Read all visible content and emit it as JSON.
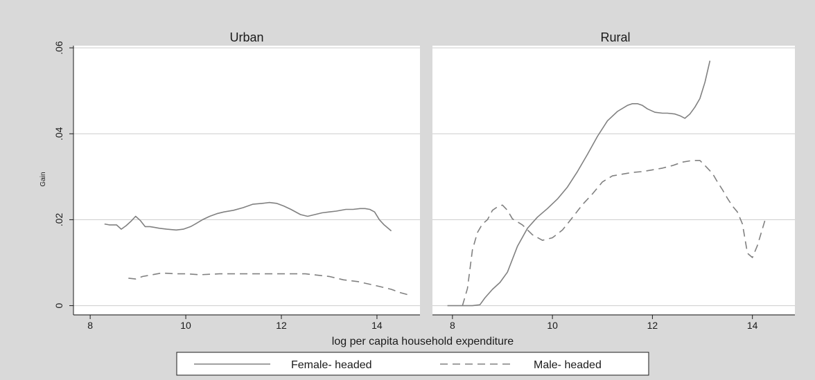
{
  "chart_data": {
    "type": "line",
    "ylabel": "Gain",
    "xlabel": "log per capita household expenditure",
    "yticks": [
      ".06",
      ".04",
      ".02",
      "0"
    ],
    "xticks": [
      "8",
      "10",
      "12",
      "14"
    ],
    "legend": {
      "placement": "bottom",
      "female": "Female- headed",
      "male": "Male- headed"
    },
    "colors": {
      "background": "#d9d9d9",
      "plot": "#ffffff",
      "grid": "#cccccc",
      "line": "#808080",
      "text": "#1a1a1a"
    },
    "panels": [
      {
        "title": "Urban",
        "xlim": [
          7.65,
          14.9
        ],
        "ylim": [
          -0.002,
          0.0605
        ],
        "series": [
          {
            "name": "Female- headed",
            "style": "solid",
            "x": [
              8.3,
              8.4,
              8.55,
              8.65,
              8.75,
              8.85,
              8.95,
              9.05,
              9.15,
              9.25,
              9.35,
              9.45,
              9.6,
              9.8,
              9.95,
              10.1,
              10.2,
              10.35,
              10.5,
              10.65,
              10.8,
              11.0,
              11.2,
              11.4,
              11.6,
              11.75,
              11.9,
              12.05,
              12.2,
              12.4,
              12.55,
              12.7,
              12.85,
              13.0,
              13.15,
              13.35,
              13.5,
              13.65,
              13.75,
              13.85,
              13.95,
              14.05,
              14.15,
              14.3
            ],
            "y": [
              0.019,
              0.0188,
              0.0188,
              0.0178,
              0.0186,
              0.0196,
              0.0208,
              0.0198,
              0.0184,
              0.0184,
              0.0182,
              0.018,
              0.0178,
              0.0176,
              0.0178,
              0.0184,
              0.019,
              0.02,
              0.0208,
              0.0214,
              0.0218,
              0.0222,
              0.0228,
              0.0236,
              0.0238,
              0.024,
              0.0238,
              0.0232,
              0.0224,
              0.0212,
              0.0208,
              0.0212,
              0.0216,
              0.0218,
              0.022,
              0.0224,
              0.0224,
              0.0226,
              0.0226,
              0.0224,
              0.0218,
              0.02,
              0.0188,
              0.0174
            ]
          },
          {
            "name": "Male- headed",
            "style": "dashed",
            "x": [
              8.8,
              8.95,
              9.1,
              9.3,
              9.5,
              9.8,
              10.0,
              10.3,
              10.7,
              11.0,
              11.5,
              12.0,
              12.5,
              13.0,
              13.3,
              13.6,
              14.0,
              14.3,
              14.5,
              14.7
            ],
            "y": [
              0.0064,
              0.0062,
              0.0068,
              0.0072,
              0.0076,
              0.0074,
              0.0074,
              0.0072,
              0.0074,
              0.0074,
              0.0074,
              0.0074,
              0.0074,
              0.0068,
              0.006,
              0.0056,
              0.0046,
              0.0038,
              0.003,
              0.0024
            ]
          }
        ]
      },
      {
        "title": "Rural",
        "xlim": [
          7.6,
          14.85
        ],
        "ylim": [
          -0.002,
          0.0605
        ],
        "series": [
          {
            "name": "Female- headed",
            "style": "solid",
            "x": [
              7.9,
              8.2,
              8.4,
              8.55,
              8.65,
              8.8,
              8.95,
              9.1,
              9.3,
              9.5,
              9.7,
              9.9,
              10.1,
              10.3,
              10.5,
              10.7,
              10.9,
              11.1,
              11.3,
              11.5,
              11.6,
              11.7,
              11.8,
              11.9,
              12.05,
              12.2,
              12.3,
              12.45,
              12.55,
              12.65,
              12.75,
              12.85,
              12.95,
              13.05,
              13.15
            ],
            "y": [
              0.0,
              0.0,
              0.0,
              0.0002,
              0.0018,
              0.0038,
              0.0054,
              0.0078,
              0.0138,
              0.018,
              0.0206,
              0.0226,
              0.0248,
              0.0276,
              0.0312,
              0.0352,
              0.0394,
              0.043,
              0.0452,
              0.0466,
              0.047,
              0.047,
              0.0466,
              0.0458,
              0.045,
              0.0448,
              0.0448,
              0.0446,
              0.0442,
              0.0436,
              0.0446,
              0.0462,
              0.0482,
              0.052,
              0.057
            ]
          },
          {
            "name": "Male- headed",
            "style": "dashed",
            "x": [
              8.2,
              8.3,
              8.4,
              8.5,
              8.6,
              8.7,
              8.8,
              8.9,
              9.0,
              9.1,
              9.2,
              9.4,
              9.6,
              9.8,
              10.0,
              10.2,
              10.4,
              10.6,
              10.8,
              11.0,
              11.2,
              11.4,
              11.6,
              11.8,
              12.0,
              12.2,
              12.4,
              12.6,
              12.8,
              12.95,
              13.05,
              13.2,
              13.3,
              13.4,
              13.5,
              13.6,
              13.7,
              13.8,
              13.9,
              14.0,
              14.1,
              14.25
            ],
            "y": [
              0.0,
              0.004,
              0.013,
              0.017,
              0.019,
              0.02,
              0.0222,
              0.023,
              0.0234,
              0.0222,
              0.0202,
              0.0188,
              0.0165,
              0.0152,
              0.0158,
              0.0176,
              0.0205,
              0.0235,
              0.026,
              0.0288,
              0.0302,
              0.0306,
              0.031,
              0.0312,
              0.0316,
              0.032,
              0.0326,
              0.0334,
              0.0338,
              0.0338,
              0.0326,
              0.0308,
              0.0288,
              0.027,
              0.025,
              0.0232,
              0.0218,
              0.019,
              0.0122,
              0.0112,
              0.014,
              0.0198
            ]
          }
        ]
      }
    ]
  }
}
